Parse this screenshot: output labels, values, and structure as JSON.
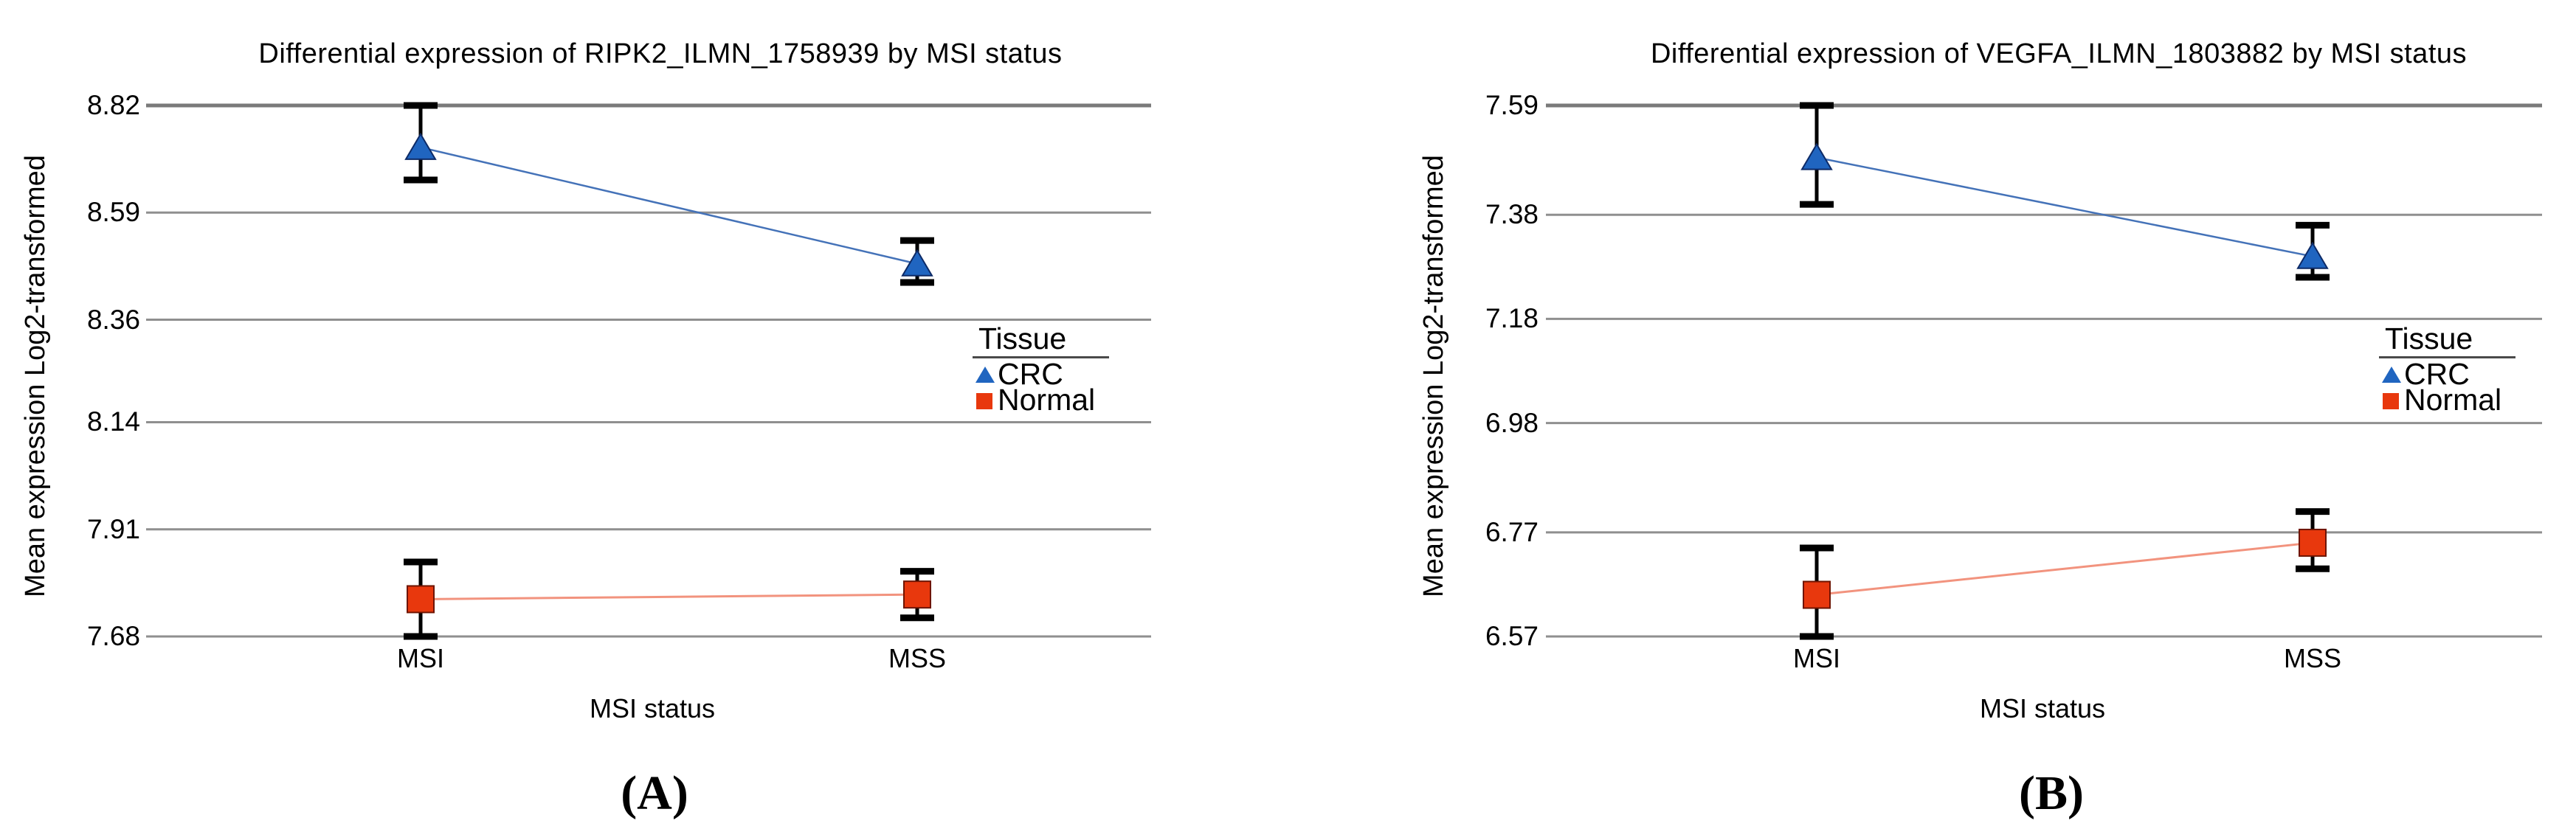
{
  "figure_background": "#ffffff",
  "chart_data": [
    {
      "type": "line",
      "panel_label": "(A)",
      "title": "Differential expression of RIPK2_ILMN_1758939 by MSI status",
      "xlabel": "MSI status",
      "ylabel": "Mean expression Log2-transformed",
      "categories": [
        "MSI",
        "MSS"
      ],
      "yticks": [
        "8.82",
        "8.59",
        "8.36",
        "8.14",
        "7.91",
        "7.68"
      ],
      "ylim": [
        7.68,
        8.82
      ],
      "grid": "horizontal-only",
      "legend": {
        "title": "Tissue",
        "position": "right-inside",
        "items": [
          {
            "label": "CRC",
            "marker": "triangle",
            "color": "#2065C0"
          },
          {
            "label": "Normal",
            "marker": "square",
            "color": "#E8380D"
          }
        ]
      },
      "series": [
        {
          "name": "CRC",
          "marker": "triangle",
          "color": "#2065C0",
          "edge_color": "#0d2a66",
          "line_color": "#4472B8",
          "means": [
            8.73,
            8.48
          ],
          "ci_low": [
            8.66,
            8.44
          ],
          "ci_high": [
            8.82,
            8.53
          ]
        },
        {
          "name": "Normal",
          "marker": "square",
          "color": "#E8380D",
          "edge_color": "#6e1400",
          "line_color": "#F2937E",
          "means": [
            7.76,
            7.77
          ],
          "ci_low": [
            7.68,
            7.72
          ],
          "ci_high": [
            7.84,
            7.82
          ]
        }
      ]
    },
    {
      "type": "line",
      "panel_label": "(B)",
      "title": "Differential expression of VEGFA_ILMN_1803882 by MSI status",
      "xlabel": "MSI status",
      "ylabel": "Mean expression Log2-transformed",
      "categories": [
        "MSI",
        "MSS"
      ],
      "yticks": [
        "7.59",
        "7.38",
        "7.18",
        "6.98",
        "6.77",
        "6.57"
      ],
      "ylim": [
        6.57,
        7.59
      ],
      "grid": "horizontal-only",
      "legend": {
        "title": "Tissue",
        "position": "right-inside",
        "items": [
          {
            "label": "CRC",
            "marker": "triangle",
            "color": "#2065C0"
          },
          {
            "label": "Normal",
            "marker": "square",
            "color": "#E8380D"
          }
        ]
      },
      "series": [
        {
          "name": "CRC",
          "marker": "triangle",
          "color": "#2065C0",
          "edge_color": "#0d2a66",
          "line_color": "#4472B8",
          "means": [
            7.49,
            7.3
          ],
          "ci_low": [
            7.4,
            7.26
          ],
          "ci_high": [
            7.59,
            7.36
          ]
        },
        {
          "name": "Normal",
          "marker": "square",
          "color": "#E8380D",
          "edge_color": "#6e1400",
          "line_color": "#F2937E",
          "means": [
            6.65,
            6.75
          ],
          "ci_low": [
            6.57,
            6.7
          ],
          "ci_high": [
            6.74,
            6.81
          ]
        }
      ]
    }
  ],
  "style": {
    "gridline_color": "#8f8f8f",
    "gridline_top_color": "#7a7a7a",
    "error_bar_color": "#000000",
    "text_color": "#000000"
  }
}
